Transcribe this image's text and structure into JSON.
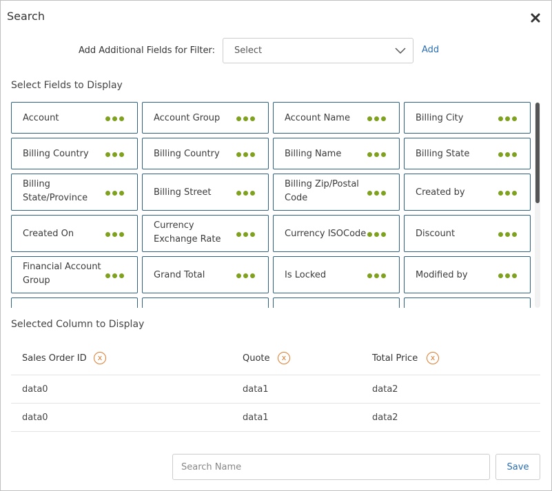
{
  "dialog": {
    "title": "Search",
    "close_icon": "close-icon"
  },
  "filter": {
    "label": "Add Additional Fields for Filter:",
    "select_value": "Select",
    "add_label": "Add"
  },
  "fields_section": {
    "label": "Select Fields to Display",
    "fields": [
      {
        "label": "Account"
      },
      {
        "label": "Account Group"
      },
      {
        "label": "Account Name"
      },
      {
        "label": "Billing City"
      },
      {
        "label": "Billing Country"
      },
      {
        "label": "Billing Country"
      },
      {
        "label": "Billing Name"
      },
      {
        "label": "Billing State"
      },
      {
        "label": "Billing State/Province"
      },
      {
        "label": "Billing Street"
      },
      {
        "label": "Billing Zip/Postal Code"
      },
      {
        "label": "Created by"
      },
      {
        "label": "Created On"
      },
      {
        "label": "Currency Exchange Rate"
      },
      {
        "label": "Currency ISOCode"
      },
      {
        "label": "Discount"
      },
      {
        "label": "Financial Account Group"
      },
      {
        "label": "Grand Total"
      },
      {
        "label": "Is Locked"
      },
      {
        "label": "Modified by"
      },
      {
        "label": ""
      },
      {
        "label": ""
      },
      {
        "label": ""
      },
      {
        "label": ""
      }
    ],
    "accent_color": "#7ea11f",
    "border_color": "#2f5f7f"
  },
  "selected_section": {
    "label": "Selected Column to Display",
    "columns": [
      {
        "label": "Sales Order ID",
        "remove": "x"
      },
      {
        "label": "Quote",
        "remove": "x"
      },
      {
        "label": "Total Price",
        "remove": "x"
      }
    ],
    "rows": [
      [
        "data0",
        "data1",
        "data2"
      ],
      [
        "data0",
        "data1",
        "data2"
      ]
    ]
  },
  "footer": {
    "search_placeholder": "Search Name",
    "save_label": "Save"
  }
}
